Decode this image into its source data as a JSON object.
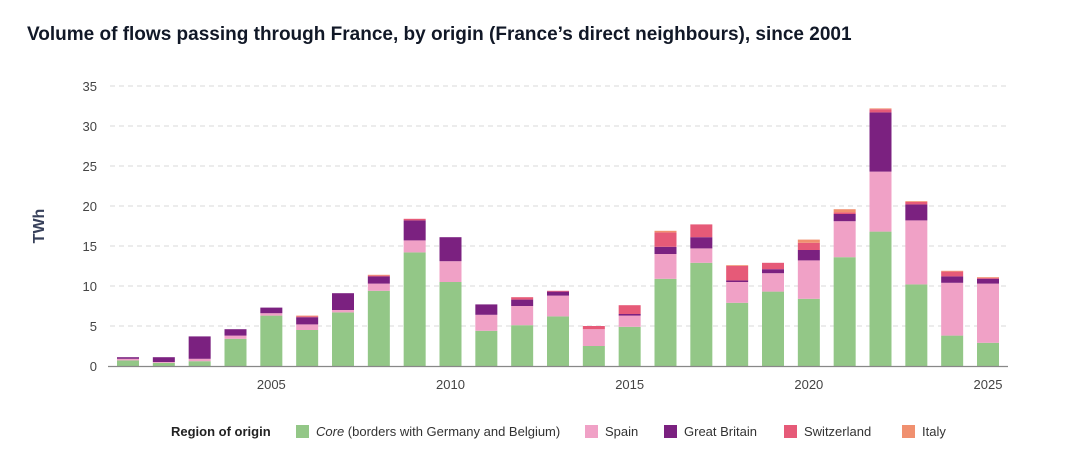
{
  "chart_data": {
    "type": "bar",
    "stacked": true,
    "title": "Volume of flows passing through France, by origin (France’s direct neighbours), since 2001",
    "xlabel": "",
    "ylabel": "TWh",
    "ylim": [
      0,
      35
    ],
    "yticks": [
      0,
      5,
      10,
      15,
      20,
      25,
      30,
      35
    ],
    "xticks": [
      2005,
      2010,
      2015,
      2020,
      2025
    ],
    "grid": true,
    "legend_placement": "bottom",
    "legend_title": "Region of origin",
    "categories": [
      2001,
      2002,
      2003,
      2004,
      2005,
      2006,
      2007,
      2008,
      2009,
      2010,
      2011,
      2012,
      2013,
      2014,
      2015,
      2016,
      2017,
      2018,
      2019,
      2020,
      2021,
      2022,
      2023,
      2024,
      2025
    ],
    "series": [
      {
        "name": "Core",
        "name_suffix": " (borders with Germany and Belgium)",
        "color": "#93c787",
        "values": [
          0.7,
          0.4,
          0.6,
          3.4,
          6.3,
          4.5,
          6.7,
          9.4,
          14.2,
          10.5,
          4.4,
          5.1,
          6.2,
          2.5,
          4.9,
          10.9,
          12.9,
          7.9,
          9.3,
          8.4,
          13.6,
          16.8,
          10.2,
          3.8,
          2.9
        ]
      },
      {
        "name": "Spain",
        "color": "#f0a1c6",
        "values": [
          0.2,
          0.1,
          0.3,
          0.4,
          0.3,
          0.7,
          0.3,
          0.9,
          1.5,
          2.6,
          2.0,
          2.4,
          2.6,
          2.1,
          1.4,
          3.1,
          1.8,
          2.6,
          2.3,
          4.8,
          4.5,
          7.5,
          8.0,
          6.6,
          7.4
        ]
      },
      {
        "name": "Great Britain",
        "color": "#7b2180",
        "values": [
          0.2,
          0.6,
          2.8,
          0.8,
          0.7,
          0.9,
          2.1,
          0.9,
          2.5,
          3.0,
          1.3,
          0.8,
          0.5,
          0.0,
          0.2,
          0.9,
          1.4,
          0.2,
          0.5,
          1.3,
          0.9,
          7.4,
          2.0,
          0.8,
          0.6
        ]
      },
      {
        "name": "Switzerland",
        "color": "#e65a78",
        "values": [
          0,
          0,
          0,
          0,
          0,
          0.1,
          0,
          0.1,
          0.2,
          0,
          0,
          0.3,
          0.1,
          0.4,
          1.1,
          1.8,
          1.6,
          1.8,
          0.8,
          0.9,
          0.2,
          0.4,
          0.3,
          0.6,
          0.1
        ]
      },
      {
        "name": "Italy",
        "color": "#f0906f",
        "values": [
          0,
          0,
          0,
          0,
          0,
          0.1,
          0,
          0.1,
          0,
          0,
          0,
          0,
          0,
          0,
          0,
          0.2,
          0,
          0.1,
          0,
          0.4,
          0.4,
          0.1,
          0.1,
          0.1,
          0.1
        ]
      }
    ]
  }
}
